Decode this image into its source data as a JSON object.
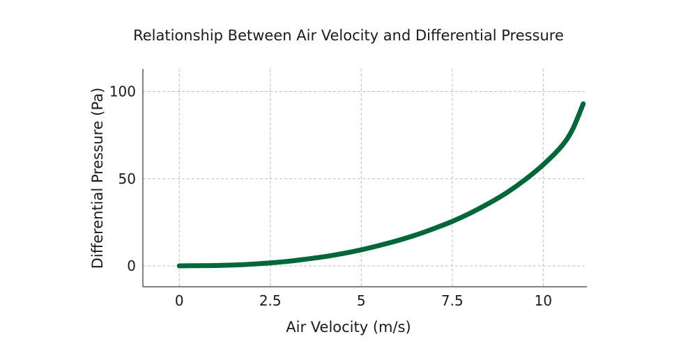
{
  "chart_data": {
    "type": "line",
    "title": "Relationship Between Air Velocity and Differential Pressure",
    "xlabel": "Air Velocity (m/s)",
    "ylabel": "Differential Pressure (Pa)",
    "xlim": [
      -1,
      11.2
    ],
    "ylim": [
      -12,
      113
    ],
    "x_ticks": [
      0,
      2.5,
      5,
      7.5,
      10
    ],
    "x_tick_labels": [
      "0",
      "2.5",
      "5",
      "7.5",
      "10"
    ],
    "y_ticks": [
      0,
      50,
      100
    ],
    "y_tick_labels": [
      "0",
      "50",
      "100"
    ],
    "grid": true,
    "series": [
      {
        "color": "#006837",
        "x": [
          0,
          0.5,
          1,
          1.5,
          2,
          2.5,
          3,
          3.5,
          4,
          4.5,
          5,
          5.5,
          6,
          6.5,
          7,
          7.5,
          8,
          8.5,
          9,
          9.5,
          10,
          10.5,
          10.8,
          11.1
        ],
        "y": [
          0,
          0.1,
          0.2,
          0.5,
          1.0,
          1.7,
          2.6,
          3.9,
          5.3,
          7.1,
          9.2,
          11.7,
          14.5,
          17.7,
          21.4,
          25.5,
          30.3,
          35.8,
          42.0,
          49.4,
          58.0,
          68.5,
          78.0,
          93.0
        ]
      }
    ]
  }
}
